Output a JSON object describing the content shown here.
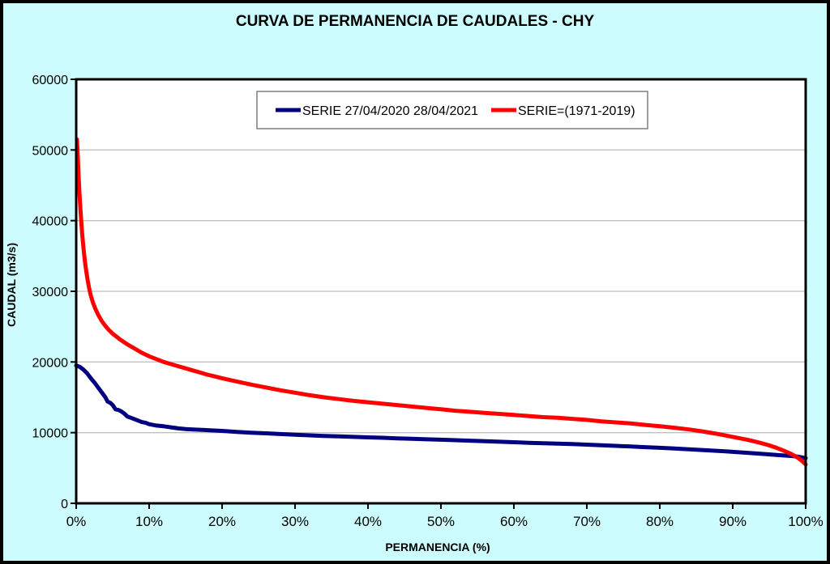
{
  "chart_data": {
    "type": "line",
    "title": "CURVA DE PERMANENCIA DE CAUDALES - CHY",
    "xlabel": "PERMANENCIA (%)",
    "ylabel": "CAUDAL (m3/s)",
    "xlim": [
      0,
      100
    ],
    "ylim": [
      0,
      60000
    ],
    "grid": "horizontal-only",
    "legend_position": "top-center-inside",
    "background_color": "#CCFCFD",
    "plot_background": "#FFFFFF",
    "gridline_color": "#C0C0C0",
    "axis_color": "#000000",
    "x_tick_values": [
      0,
      10,
      20,
      30,
      40,
      50,
      60,
      70,
      80,
      90,
      100
    ],
    "x_tick_labels": [
      "0%",
      "10%",
      "20%",
      "30%",
      "40%",
      "50%",
      "60%",
      "70%",
      "80%",
      "90%",
      "100%"
    ],
    "y_tick_values": [
      0,
      10000,
      20000,
      30000,
      40000,
      50000,
      60000
    ],
    "y_tick_labels": [
      "0",
      "10000",
      "20000",
      "30000",
      "40000",
      "50000",
      "60000"
    ],
    "series": [
      {
        "name": "SERIE 27/04/2020 28/04/2021",
        "color": "#000080",
        "x": [
          0,
          0.5,
          1,
          1.5,
          2,
          2.5,
          3,
          3.5,
          4,
          4.3,
          4.7,
          5,
          5.4,
          5.8,
          6.2,
          6.6,
          7,
          7.5,
          8,
          8.5,
          9,
          9.5,
          10,
          11,
          12,
          13,
          14,
          15,
          16,
          18,
          20,
          22,
          24,
          26,
          28,
          30,
          32,
          34,
          36,
          38,
          40,
          42,
          44,
          46,
          48,
          50,
          52,
          54,
          56,
          58,
          60,
          62,
          64,
          66,
          68,
          70,
          72,
          74,
          76,
          78,
          80,
          82,
          84,
          86,
          88,
          90,
          92,
          94,
          96,
          98,
          99,
          100
        ],
        "y": [
          19500,
          19300,
          18900,
          18400,
          17700,
          17100,
          16400,
          15700,
          15000,
          14400,
          14200,
          13900,
          13300,
          13200,
          13000,
          12700,
          12300,
          12100,
          11900,
          11700,
          11500,
          11400,
          11200,
          11000,
          10900,
          10750,
          10600,
          10500,
          10450,
          10350,
          10250,
          10100,
          10000,
          9900,
          9800,
          9700,
          9620,
          9540,
          9470,
          9400,
          9330,
          9270,
          9200,
          9130,
          9060,
          9000,
          8930,
          8860,
          8790,
          8710,
          8640,
          8570,
          8500,
          8440,
          8380,
          8300,
          8220,
          8130,
          8040,
          7950,
          7850,
          7750,
          7650,
          7540,
          7420,
          7280,
          7150,
          7000,
          6850,
          6700,
          6600,
          6400
        ]
      },
      {
        "name": "SERIE=(1971-2019)",
        "color": "#FF0000",
        "x": [
          0.1,
          0.2,
          0.3,
          0.4,
          0.5,
          0.6,
          0.7,
          0.8,
          0.9,
          1.0,
          1.2,
          1.4,
          1.6,
          1.8,
          2.0,
          2.3,
          2.6,
          3.0,
          3.5,
          4.0,
          4.5,
          5.0,
          5.5,
          6.0,
          7,
          8,
          9,
          10,
          11,
          12,
          13,
          14,
          15,
          16,
          17,
          18,
          19,
          20,
          22,
          24,
          26,
          28,
          30,
          32,
          34,
          36,
          38,
          40,
          42,
          44,
          46,
          48,
          50,
          52,
          54,
          56,
          58,
          60,
          62,
          64,
          66,
          68,
          70,
          72,
          74,
          76,
          78,
          80,
          82,
          84,
          86,
          88,
          90,
          92,
          93,
          94,
          95,
          96,
          97,
          98,
          99,
          99.5,
          100
        ],
        "y": [
          51500,
          49500,
          47000,
          44800,
          43000,
          41300,
          39800,
          38400,
          37200,
          36100,
          34200,
          32700,
          31400,
          30300,
          29400,
          28400,
          27600,
          26700,
          25800,
          25100,
          24500,
          24000,
          23600,
          23200,
          22500,
          21900,
          21300,
          20800,
          20400,
          20000,
          19700,
          19400,
          19100,
          18800,
          18500,
          18200,
          17950,
          17700,
          17250,
          16800,
          16400,
          16000,
          15650,
          15300,
          15000,
          14750,
          14500,
          14300,
          14100,
          13900,
          13700,
          13500,
          13300,
          13100,
          12950,
          12800,
          12650,
          12500,
          12350,
          12200,
          12100,
          11950,
          11800,
          11600,
          11450,
          11300,
          11100,
          10900,
          10700,
          10450,
          10150,
          9800,
          9400,
          9000,
          8750,
          8500,
          8200,
          7850,
          7450,
          7000,
          6400,
          6000,
          5500
        ]
      }
    ]
  }
}
